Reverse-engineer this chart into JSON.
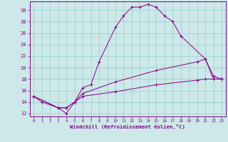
{
  "xlabel": "Windchill (Refroidissement éolien,°C)",
  "bg_color": "#cce8e8",
  "line_color": "#880088",
  "grid_color": "#99cccc",
  "xlim": [
    -0.5,
    23.5
  ],
  "ylim": [
    11.5,
    31.5
  ],
  "xticks": [
    0,
    1,
    2,
    3,
    4,
    5,
    6,
    7,
    8,
    9,
    10,
    11,
    12,
    13,
    14,
    15,
    16,
    17,
    18,
    19,
    20,
    21,
    22,
    23
  ],
  "yticks": [
    12,
    14,
    16,
    18,
    20,
    22,
    24,
    26,
    28,
    30
  ],
  "lines": [
    {
      "x": [
        0,
        1,
        3,
        4,
        5,
        6,
        7,
        8,
        10,
        11,
        12,
        13,
        14,
        15,
        16,
        17,
        18,
        21,
        22,
        23
      ],
      "y": [
        15,
        14,
        13,
        12,
        14,
        16.5,
        17,
        21,
        27,
        29,
        30.5,
        30.5,
        31,
        30.5,
        29,
        28,
        25.5,
        21.5,
        18,
        18
      ]
    },
    {
      "x": [
        0,
        3,
        4,
        5,
        6,
        10,
        15,
        20,
        21,
        22,
        23
      ],
      "y": [
        15,
        13,
        13,
        14,
        15.5,
        17.5,
        19.5,
        21,
        21.5,
        18.5,
        18
      ]
    },
    {
      "x": [
        0,
        3,
        4,
        5,
        6,
        10,
        15,
        20,
        21,
        22,
        23
      ],
      "y": [
        15,
        13,
        13,
        14,
        15,
        15.8,
        17,
        17.8,
        18,
        18,
        18
      ]
    }
  ]
}
